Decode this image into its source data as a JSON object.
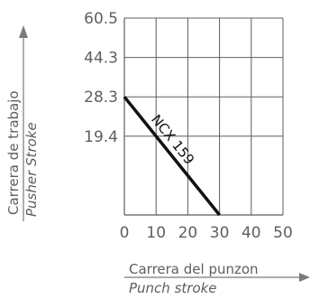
{
  "chart_data": {
    "type": "line",
    "xlabel": "Carrera del punzon",
    "xlabel_en": "Punch stroke",
    "ylabel": "Carrera de trabajo",
    "ylabel_en": "Pusher Stroke",
    "xlim": [
      0,
      50
    ],
    "x_ticks": [
      0,
      10,
      20,
      30,
      40,
      50
    ],
    "x_tick_labels": [
      "0",
      "10",
      "20",
      "30",
      "40",
      "50"
    ],
    "y_ticks": [
      19.4,
      28.3,
      44.3,
      60.5
    ],
    "y_tick_labels": [
      "19.4",
      "28.3",
      "44.3",
      "60.5"
    ],
    "grid": true,
    "series": [
      {
        "name": "NCX 159",
        "x": [
          0,
          30
        ],
        "y": [
          28.3,
          0
        ]
      }
    ],
    "colors": {
      "series": "#111111",
      "grid": "#5e5e5e",
      "text": "#5e5e5e",
      "arrow": "#7a7a7a"
    }
  }
}
